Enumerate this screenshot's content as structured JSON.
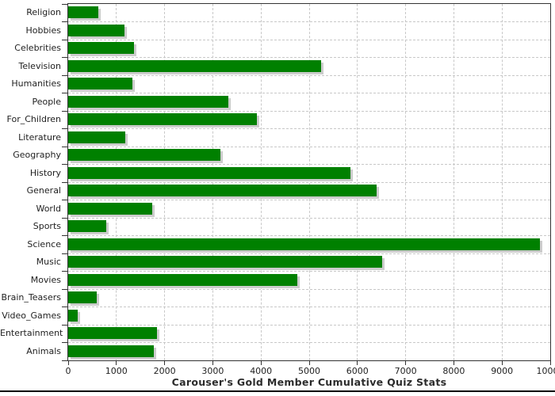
{
  "chart_data": {
    "type": "bar",
    "orientation": "horizontal",
    "title": "Carouser's Gold Member Cumulative Quiz Stats",
    "categories": [
      "Religion",
      "Hobbies",
      "Celebrities",
      "Television",
      "Humanities",
      "People",
      "For_Children",
      "Literature",
      "Geography",
      "History",
      "General",
      "World",
      "Sports",
      "Science",
      "Music",
      "Movies",
      "Brain_Teasers",
      "Video_Games",
      "Entertainment",
      "Animals"
    ],
    "values": [
      630,
      1160,
      1360,
      5250,
      1340,
      3320,
      3920,
      1190,
      3160,
      5850,
      6400,
      1740,
      790,
      9780,
      6520,
      4750,
      590,
      200,
      1840,
      1770
    ],
    "xlabel": "",
    "ylabel": "",
    "xlim": [
      0,
      10000
    ],
    "x_ticks": [
      0,
      1000,
      2000,
      3000,
      4000,
      5000,
      6000,
      7000,
      8000,
      9000,
      10000
    ],
    "grid": true,
    "legend": "none",
    "colors": {
      "bar": "#008000",
      "bar_shadow": "#cccccc",
      "gridline": "#c8c8c8",
      "axis": "#333333",
      "text": "#222222",
      "title": "#2b2b2b",
      "bottom_border": "#000000"
    }
  }
}
